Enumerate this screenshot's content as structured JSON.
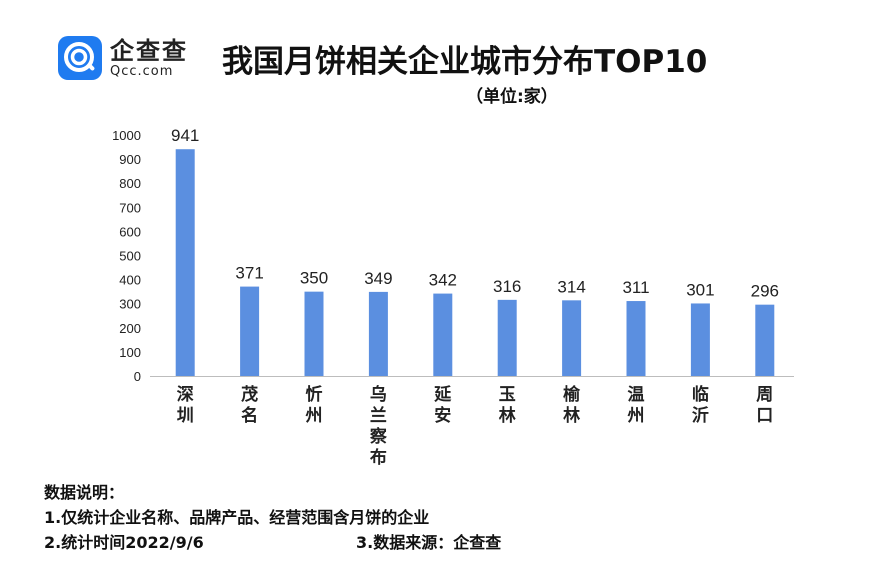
{
  "header": {
    "logo_cn": "企查查",
    "logo_en": "Qcc.com",
    "title": "我国月饼相关企业城市分布TOP10",
    "subtitle": "（单位:家）"
  },
  "chart_data": {
    "type": "bar",
    "title": "我国月饼相关企业城市分布TOP10",
    "subtitle": "（单位:家）",
    "categories": [
      "深圳",
      "茂名",
      "忻州",
      "乌兰察布",
      "延安",
      "玉林",
      "榆林",
      "温州",
      "临沂",
      "周口"
    ],
    "values": [
      941,
      371,
      350,
      349,
      342,
      316,
      314,
      311,
      301,
      296
    ],
    "ylim": [
      0,
      1000
    ],
    "yticks": [
      0,
      100,
      200,
      300,
      400,
      500,
      600,
      700,
      800,
      900,
      1000
    ],
    "bar_color": "#5b8fe0",
    "data_labels": true,
    "grid": false,
    "legend": false
  },
  "notes": {
    "heading": "数据说明：",
    "line1": "1.仅统计企业名称、品牌产品、经营范围含月饼的企业",
    "line2": "2.统计时间2022/9/6",
    "line3": "3.数据来源：企查查"
  }
}
